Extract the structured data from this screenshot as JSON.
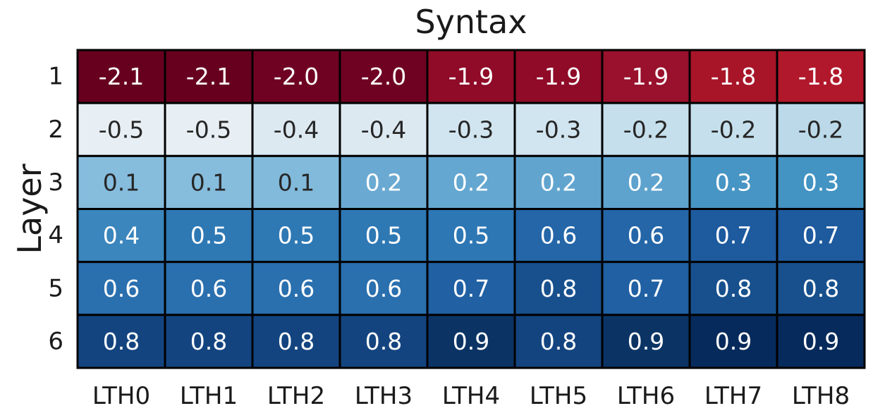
{
  "chart_data": {
    "type": "heatmap",
    "title": "Syntax",
    "xlabel": "",
    "ylabel": "Layer",
    "x_categories": [
      "LTH0",
      "LTH1",
      "LTH2",
      "LTH3",
      "LTH4",
      "LTH5",
      "LTH6",
      "LTH7",
      "LTH8"
    ],
    "y_categories": [
      "1",
      "2",
      "3",
      "4",
      "5",
      "6"
    ],
    "values": [
      [
        -2.1,
        -2.1,
        -2.0,
        -2.0,
        -1.9,
        -1.9,
        -1.9,
        -1.8,
        -1.8
      ],
      [
        -0.5,
        -0.5,
        -0.4,
        -0.4,
        -0.3,
        -0.3,
        -0.2,
        -0.2,
        -0.2
      ],
      [
        0.1,
        0.1,
        0.1,
        0.2,
        0.2,
        0.2,
        0.2,
        0.3,
        0.3
      ],
      [
        0.4,
        0.5,
        0.5,
        0.5,
        0.5,
        0.6,
        0.6,
        0.7,
        0.7
      ],
      [
        0.6,
        0.6,
        0.6,
        0.6,
        0.7,
        0.8,
        0.7,
        0.8,
        0.8
      ],
      [
        0.8,
        0.8,
        0.8,
        0.8,
        0.9,
        0.8,
        0.9,
        0.9,
        0.9
      ]
    ],
    "value_labels": [
      [
        "-2.1",
        "-2.1",
        "-2.0",
        "-2.0",
        "-1.9",
        "-1.9",
        "-1.9",
        "-1.8",
        "-1.8"
      ],
      [
        "-0.5",
        "-0.5",
        "-0.4",
        "-0.4",
        "-0.3",
        "-0.3",
        "-0.2",
        "-0.2",
        "-0.2"
      ],
      [
        "0.1",
        "0.1",
        "0.1",
        "0.2",
        "0.2",
        "0.2",
        "0.2",
        "0.3",
        "0.3"
      ],
      [
        "0.4",
        "0.5",
        "0.5",
        "0.5",
        "0.5",
        "0.6",
        "0.6",
        "0.7",
        "0.7"
      ],
      [
        "0.6",
        "0.6",
        "0.6",
        "0.6",
        "0.7",
        "0.8",
        "0.7",
        "0.8",
        "0.8"
      ],
      [
        "0.8",
        "0.8",
        "0.8",
        "0.8",
        "0.9",
        "0.8",
        "0.9",
        "0.9",
        "0.9"
      ]
    ],
    "colormap": "RdBu (diverging, red negative, blue positive)",
    "colors": {
      "row_1": [
        "#67001f",
        "#67001f",
        "#6f0222",
        "#6f0222",
        "#8f0b28",
        "#8f0b28",
        "#99112c",
        "#a81529",
        "#b2182b"
      ],
      "row_2": [
        "#e8eff4",
        "#e8eff4",
        "#dde9f1",
        "#dde9f1",
        "#d1e5f0",
        "#d1e5f0",
        "#c5dfec",
        "#c5dfec",
        "#bbd9e9"
      ],
      "row_3": [
        "#86bcdc",
        "#86bcdc",
        "#82badb",
        "#6aaad2",
        "#64a7d0",
        "#61a5cf",
        "#5ea3ce",
        "#4795c5",
        "#4393c3"
      ],
      "row_4": [
        "#3a86bd",
        "#2e78b4",
        "#2e78b4",
        "#2e78b4",
        "#2d77b4",
        "#2466a8",
        "#2466a8",
        "#1d5a9e",
        "#1d5a9e"
      ],
      "row_5": [
        "#2a6fae",
        "#2a6fae",
        "#2a6fae",
        "#2a6fae",
        "#2060a3",
        "#17508d",
        "#2060a3",
        "#17508d",
        "#17508d"
      ],
      "row_6": [
        "#13447f",
        "#13447f",
        "#13447f",
        "#13447f",
        "#0b3465",
        "#13447f",
        "#0b3465",
        "#062a5b",
        "#062a5b"
      ]
    },
    "grid": false,
    "legend": "none"
  }
}
